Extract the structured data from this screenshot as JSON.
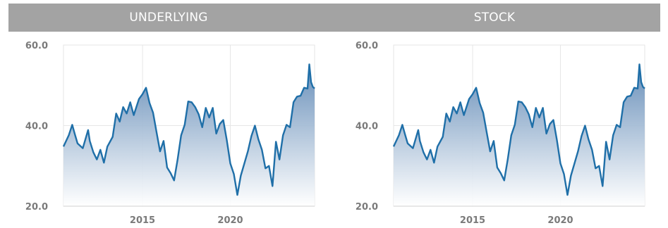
{
  "panels": [
    {
      "title": "UNDERLYING"
    },
    {
      "title": "STOCK"
    }
  ],
  "colors": {
    "line": "#1f6fa8",
    "fill_top": "#5f88b5",
    "fill_bottom": "#ffffff",
    "header_bg": "#a3a3a3",
    "grid": "#e6e6e6",
    "tick": "#7a7a7a"
  },
  "chart_data": [
    {
      "type": "area",
      "title": "UNDERLYING",
      "xlabel": "",
      "ylabel": "",
      "ylim": [
        20,
        60
      ],
      "xlim": [
        2010.5,
        2024.8
      ],
      "yticks": [
        "20.0",
        "40.0",
        "60.0"
      ],
      "xticks": [
        "2015",
        "2020"
      ],
      "grid": true,
      "x": [
        2010.5,
        2010.8,
        2011.0,
        2011.15,
        2011.3,
        2011.6,
        2011.9,
        2012.0,
        2012.2,
        2012.4,
        2012.6,
        2012.8,
        2013.0,
        2013.3,
        2013.5,
        2013.7,
        2013.9,
        2014.1,
        2014.3,
        2014.5,
        2014.8,
        2015.0,
        2015.2,
        2015.4,
        2015.6,
        2015.8,
        2016.0,
        2016.2,
        2016.4,
        2016.6,
        2016.8,
        2017.0,
        2017.2,
        2017.4,
        2017.6,
        2017.8,
        2018.0,
        2018.2,
        2018.4,
        2018.6,
        2018.8,
        2019.0,
        2019.2,
        2019.4,
        2019.6,
        2019.8,
        2020.0,
        2020.2,
        2020.4,
        2020.6,
        2020.8,
        2021.0,
        2021.2,
        2021.4,
        2021.6,
        2021.8,
        2022.0,
        2022.2,
        2022.4,
        2022.6,
        2022.8,
        2023.0,
        2023.2,
        2023.4,
        2023.6,
        2023.8,
        2024.0,
        2024.2,
        2024.4,
        2024.5,
        2024.6,
        2024.7,
        2024.8
      ],
      "series": [
        {
          "values": [
            34.8,
            37.6,
            40.2,
            37.8,
            35.6,
            34.4,
            38.9,
            36.2,
            33.4,
            31.6,
            34.0,
            30.8,
            34.8,
            37.2,
            43.0,
            41.0,
            44.6,
            43.0,
            45.8,
            42.6,
            46.6,
            47.8,
            49.4,
            45.6,
            43.2,
            38.4,
            33.6,
            36.2,
            29.6,
            28.2,
            26.4,
            31.6,
            37.6,
            40.2,
            46.0,
            45.8,
            44.6,
            42.8,
            39.6,
            44.4,
            42.0,
            44.4,
            38.0,
            40.4,
            41.4,
            36.4,
            30.6,
            28.0,
            22.8,
            27.6,
            30.6,
            33.6,
            37.4,
            40.0,
            36.6,
            34.0,
            29.4,
            30.0,
            25.0,
            36.0,
            31.6,
            37.6,
            40.2,
            39.6,
            45.8,
            47.2,
            47.4,
            49.4,
            49.2,
            55.2,
            50.8,
            49.6,
            49.2
          ]
        }
      ]
    },
    {
      "type": "area",
      "title": "STOCK",
      "xlabel": "",
      "ylabel": "",
      "ylim": [
        20,
        60
      ],
      "xlim": [
        2010.5,
        2024.8
      ],
      "yticks": [
        "20.0",
        "40.0",
        "60.0"
      ],
      "xticks": [
        "2015",
        "2020"
      ],
      "grid": true,
      "x": [
        2010.5,
        2010.8,
        2011.0,
        2011.15,
        2011.3,
        2011.6,
        2011.9,
        2012.0,
        2012.2,
        2012.4,
        2012.6,
        2012.8,
        2013.0,
        2013.3,
        2013.5,
        2013.7,
        2013.9,
        2014.1,
        2014.3,
        2014.5,
        2014.8,
        2015.0,
        2015.2,
        2015.4,
        2015.6,
        2015.8,
        2016.0,
        2016.2,
        2016.4,
        2016.6,
        2016.8,
        2017.0,
        2017.2,
        2017.4,
        2017.6,
        2017.8,
        2018.0,
        2018.2,
        2018.4,
        2018.6,
        2018.8,
        2019.0,
        2019.2,
        2019.4,
        2019.6,
        2019.8,
        2020.0,
        2020.2,
        2020.4,
        2020.6,
        2020.8,
        2021.0,
        2021.2,
        2021.4,
        2021.6,
        2021.8,
        2022.0,
        2022.2,
        2022.4,
        2022.6,
        2022.8,
        2023.0,
        2023.2,
        2023.4,
        2023.6,
        2023.8,
        2024.0,
        2024.2,
        2024.4,
        2024.5,
        2024.6,
        2024.7,
        2024.8
      ],
      "series": [
        {
          "values": [
            34.8,
            37.6,
            40.2,
            37.8,
            35.6,
            34.4,
            38.9,
            36.2,
            33.4,
            31.6,
            34.0,
            30.8,
            34.8,
            37.2,
            43.0,
            41.0,
            44.6,
            43.0,
            45.8,
            42.6,
            46.6,
            47.8,
            49.4,
            45.6,
            43.2,
            38.4,
            33.6,
            36.2,
            29.6,
            28.2,
            26.4,
            31.6,
            37.6,
            40.2,
            46.0,
            45.8,
            44.6,
            42.8,
            39.6,
            44.4,
            42.0,
            44.4,
            38.0,
            40.4,
            41.4,
            36.4,
            30.6,
            28.0,
            22.8,
            27.6,
            30.6,
            33.6,
            37.4,
            40.0,
            36.6,
            34.0,
            29.4,
            30.0,
            25.0,
            36.0,
            31.6,
            37.6,
            40.2,
            39.6,
            45.8,
            47.2,
            47.4,
            49.4,
            49.2,
            55.2,
            50.8,
            49.6,
            49.2
          ]
        }
      ]
    }
  ]
}
